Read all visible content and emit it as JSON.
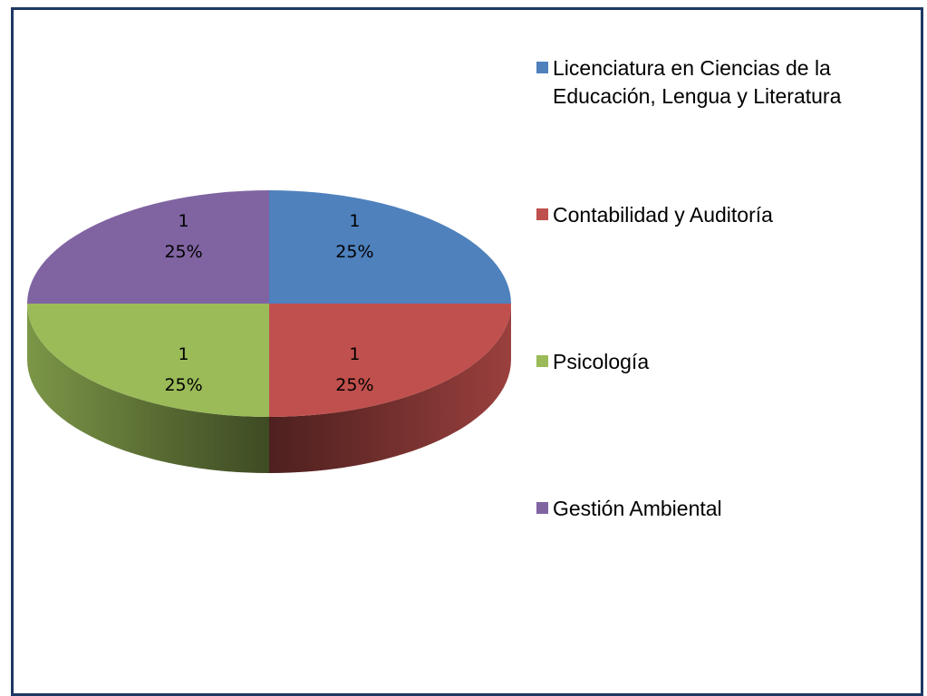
{
  "chart_data": {
    "type": "pie",
    "categories": [
      "Licenciatura en Ciencias de la Educación, Lengua y Literatura",
      "Contabilidad y Auditoría",
      "Psicología",
      "Gestión Ambiental"
    ],
    "values": [
      1,
      1,
      1,
      1
    ],
    "percentages": [
      25,
      25,
      25,
      25
    ],
    "percentage_labels": [
      "25%",
      "25%",
      "25%",
      "25%"
    ],
    "colors": [
      "#4f81bd",
      "#c0504d",
      "#9bbb59",
      "#8064a2"
    ],
    "legend": "right"
  }
}
